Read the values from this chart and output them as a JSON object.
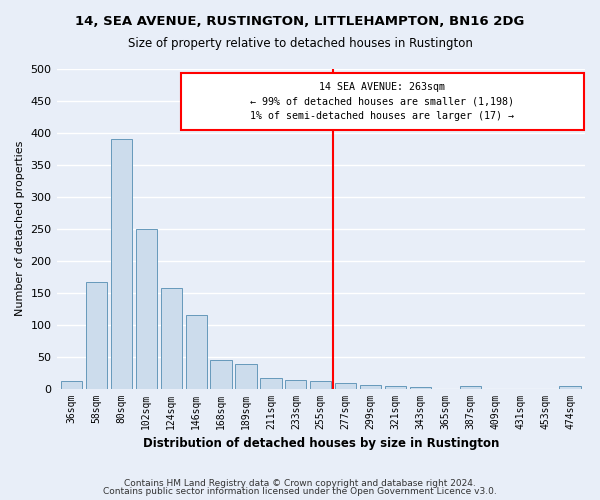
{
  "title": "14, SEA AVENUE, RUSTINGTON, LITTLEHAMPTON, BN16 2DG",
  "subtitle": "Size of property relative to detached houses in Rustington",
  "xlabel": "Distribution of detached houses by size in Rustington",
  "ylabel": "Number of detached properties",
  "bar_color": "#ccdcec",
  "bar_edge_color": "#6699bb",
  "background_color": "#e8eef8",
  "grid_color": "#ffffff",
  "categories": [
    "36sqm",
    "58sqm",
    "80sqm",
    "102sqm",
    "124sqm",
    "146sqm",
    "168sqm",
    "189sqm",
    "211sqm",
    "233sqm",
    "255sqm",
    "277sqm",
    "299sqm",
    "321sqm",
    "343sqm",
    "365sqm",
    "387sqm",
    "409sqm",
    "431sqm",
    "453sqm",
    "474sqm"
  ],
  "values": [
    12,
    167,
    390,
    249,
    157,
    115,
    44,
    39,
    17,
    14,
    12,
    8,
    6,
    4,
    3,
    0,
    4,
    0,
    0,
    0,
    4
  ],
  "ylim": [
    0,
    500
  ],
  "yticks": [
    0,
    50,
    100,
    150,
    200,
    250,
    300,
    350,
    400,
    450,
    500
  ],
  "annotation_text_line1": "14 SEA AVENUE: 263sqm",
  "annotation_text_line2": "← 99% of detached houses are smaller (1,198)",
  "annotation_text_line3": "1% of semi-detached houses are larger (17) →",
  "vline_x": 10.5,
  "footer_line1": "Contains HM Land Registry data © Crown copyright and database right 2024.",
  "footer_line2": "Contains public sector information licensed under the Open Government Licence v3.0."
}
